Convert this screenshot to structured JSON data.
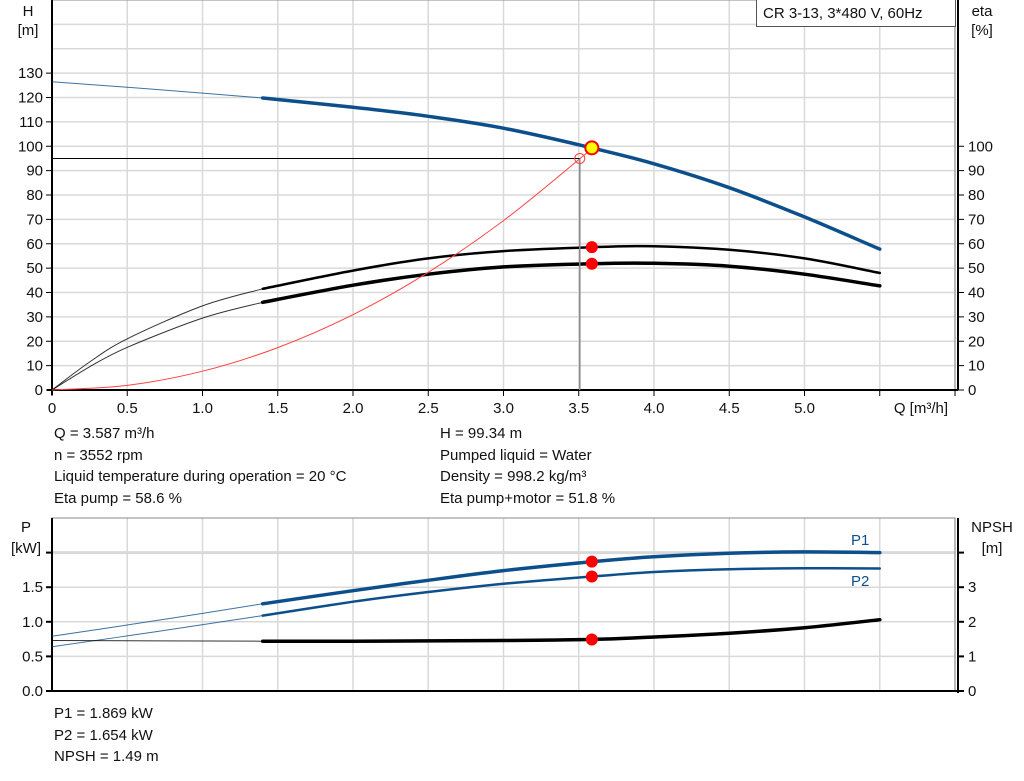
{
  "legend_title": "CR 3-13, 3*480 V, 60Hz",
  "colors": {
    "head": "#0d4f8b",
    "power": "#0d4f8b",
    "efficiency": "#000000",
    "npsh": "#000000",
    "system": "#ff4040",
    "marker": "#ff0000",
    "duty_point_fill": "#ffff00",
    "grid": "#d9d9d9"
  },
  "info_top": {
    "left": [
      "Q = 3.587 m³/h",
      "n = 3552 rpm",
      "Liquid temperature during operation = 20 °C",
      "Eta pump = 58.6 %"
    ],
    "right": [
      "H = 99.34 m",
      "Pumped liquid = Water",
      "Density = 998.2 kg/m³",
      "Eta pump+motor = 51.8 %"
    ]
  },
  "info_bottom": [
    "P1 = 1.869 kW",
    "P2 = 1.654 kW",
    "NPSH = 1.49 m"
  ],
  "chart_data": [
    {
      "type": "line",
      "xlabel": "Q [m³/h]",
      "ylabel": [
        "H",
        "[m]"
      ],
      "y2label": [
        "eta",
        "[%]"
      ],
      "xlim": [
        0,
        6.0
      ],
      "ylim": [
        0,
        160
      ],
      "y2lim": [
        0,
        160
      ],
      "xticks": [
        "0",
        "0.5",
        "1.0",
        "1.5",
        "2.0",
        "2.5",
        "3.0",
        "3.5",
        "4.0",
        "4.5",
        "5.0"
      ],
      "yticks": [
        "0",
        "10",
        "20",
        "30",
        "40",
        "50",
        "60",
        "70",
        "80",
        "90",
        "100",
        "110",
        "120",
        "130"
      ],
      "y2ticks": [
        "0",
        "10",
        "20",
        "30",
        "40",
        "50",
        "60",
        "70",
        "80",
        "90",
        "100"
      ],
      "grid": true,
      "operating_range": [
        1.4,
        5.5
      ],
      "series": [
        {
          "key": "head",
          "axis": "y",
          "x": [
            0,
            0.5,
            1.0,
            1.4,
            2.0,
            2.5,
            3.0,
            3.587,
            4.0,
            4.5,
            5.0,
            5.5
          ],
          "values": [
            126.5,
            124.2,
            121.8,
            119.8,
            116.0,
            112.3,
            107.4,
            99.34,
            92.8,
            83.0,
            71.0,
            57.8
          ]
        },
        {
          "key": "eta-pump",
          "axis": "y2",
          "x": [
            0,
            0.25,
            0.5,
            1.0,
            1.4,
            2.0,
            2.5,
            3.0,
            3.587,
            4.0,
            4.5,
            5.0,
            5.5
          ],
          "values": [
            0,
            11.5,
            21,
            34.5,
            41.5,
            49,
            54,
            57,
            58.6,
            59,
            57.5,
            54,
            48
          ]
        },
        {
          "key": "eta-pump-motor",
          "axis": "y2",
          "x": [
            0,
            0.25,
            0.5,
            1.0,
            1.4,
            2.0,
            2.5,
            3.0,
            3.587,
            4.0,
            4.5,
            5.0,
            5.5
          ],
          "values": [
            0,
            9.5,
            17.5,
            29.5,
            36,
            43,
            47.5,
            50.5,
            51.8,
            52,
            50.8,
            47.5,
            42.7
          ]
        },
        {
          "key": "system",
          "axis": "y",
          "x": [
            0,
            0.5,
            1.0,
            1.5,
            2.0,
            2.5,
            3.0,
            3.507,
            3.587
          ],
          "values": [
            0,
            1.9,
            7.7,
            17.4,
            30.9,
            48.3,
            69.5,
            94.9,
            99.34
          ]
        }
      ],
      "duty_point": {
        "q": 3.587,
        "h": 99.34,
        "eta_pump": 58.6,
        "eta_pump_motor": 51.8
      },
      "requested_point": {
        "q": 3.507,
        "h": 95.0
      }
    },
    {
      "type": "line",
      "ylabel": [
        "P",
        "[kW]"
      ],
      "y2label": [
        "NPSH",
        "[m]"
      ],
      "xlim": [
        0,
        6.0
      ],
      "ylim": [
        0,
        2.5
      ],
      "y2lim": [
        0,
        5
      ],
      "yticks": [
        "0.0",
        "0.5",
        "1.0",
        "1.5",
        ""
      ],
      "y2ticks": [
        "0",
        "1",
        "2",
        "3",
        ""
      ],
      "grid": true,
      "operating_range": [
        1.4,
        5.5
      ],
      "series": [
        {
          "key": "p1",
          "name": "P1",
          "axis": "y",
          "x": [
            0,
            0.7,
            1.4,
            2.0,
            2.5,
            3.0,
            3.587,
            4.0,
            4.5,
            5.0,
            5.5
          ],
          "values": [
            0.79,
            1.02,
            1.26,
            1.45,
            1.6,
            1.74,
            1.869,
            1.94,
            1.99,
            2.01,
            2.0
          ]
        },
        {
          "key": "p2",
          "name": "P2",
          "axis": "y",
          "x": [
            0,
            0.7,
            1.4,
            2.0,
            2.5,
            3.0,
            3.587,
            4.0,
            4.5,
            5.0,
            5.5
          ],
          "values": [
            0.64,
            0.86,
            1.09,
            1.29,
            1.43,
            1.55,
            1.654,
            1.72,
            1.76,
            1.775,
            1.77
          ]
        },
        {
          "key": "npsh",
          "axis": "y2",
          "x": [
            0,
            1.4,
            2.0,
            3.0,
            3.587,
            4.0,
            4.5,
            5.0,
            5.5
          ],
          "values": [
            1.46,
            1.44,
            1.44,
            1.46,
            1.49,
            1.56,
            1.67,
            1.83,
            2.06
          ]
        }
      ],
      "duty_point": {
        "q": 3.587,
        "p1": 1.869,
        "p2": 1.654,
        "npsh": 1.49
      }
    }
  ]
}
